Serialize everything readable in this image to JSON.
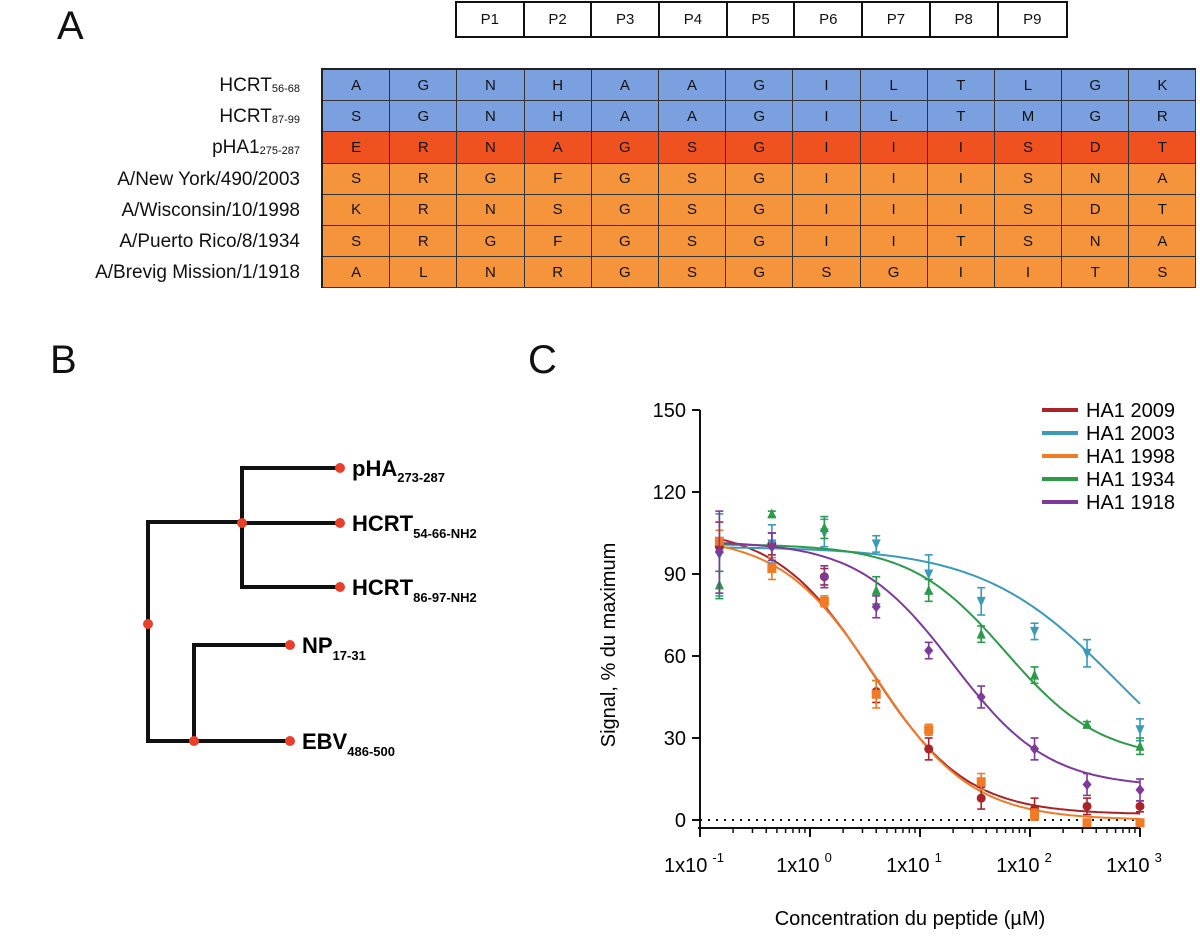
{
  "panels": {
    "a": "A",
    "b": "B",
    "c": "C"
  },
  "colors": {
    "hcrt": "#7aa0df",
    "pha1": "#f0521f",
    "strain": "#f5943a"
  },
  "positions": [
    "P1",
    "P2",
    "P3",
    "P4",
    "P5",
    "P6",
    "P7",
    "P8",
    "P9"
  ],
  "sequences": [
    {
      "name": "HCRT",
      "sub": "56-68",
      "group": "hcrt",
      "residues": [
        "A",
        "G",
        "N",
        "H",
        "A",
        "A",
        "G",
        "I",
        "L",
        "T",
        "L",
        "G",
        "K"
      ]
    },
    {
      "name": "HCRT",
      "sub": "87-99",
      "group": "hcrt",
      "residues": [
        "S",
        "G",
        "N",
        "H",
        "A",
        "A",
        "G",
        "I",
        "L",
        "T",
        "M",
        "G",
        "R"
      ]
    },
    {
      "name": "pHA1",
      "sub": "275-287",
      "group": "pha1",
      "residues": [
        "E",
        "R",
        "N",
        "A",
        "G",
        "S",
        "G",
        "I",
        "I",
        "I",
        "S",
        "D",
        "T"
      ]
    },
    {
      "name": "A/New York/490/2003",
      "sub": "",
      "group": "strain",
      "residues": [
        "S",
        "R",
        "G",
        "F",
        "G",
        "S",
        "G",
        "I",
        "I",
        "I",
        "S",
        "N",
        "A"
      ]
    },
    {
      "name": "A/Wisconsin/10/1998",
      "sub": "",
      "group": "strain",
      "residues": [
        "K",
        "R",
        "N",
        "S",
        "G",
        "S",
        "G",
        "I",
        "I",
        "I",
        "S",
        "D",
        "T"
      ]
    },
    {
      "name": "A/Puerto Rico/8/1934",
      "sub": "",
      "group": "strain",
      "residues": [
        "S",
        "R",
        "G",
        "F",
        "G",
        "S",
        "G",
        "I",
        "I",
        "T",
        "S",
        "N",
        "A"
      ]
    },
    {
      "name": "A/Brevig Mission/1/1918",
      "sub": "",
      "group": "strain",
      "residues": [
        "A",
        "L",
        "N",
        "R",
        "G",
        "S",
        "G",
        "S",
        "G",
        "I",
        "I",
        "T",
        "S"
      ]
    }
  ],
  "tree": {
    "leaves": [
      {
        "name": "pHA",
        "sub": "273-287"
      },
      {
        "name": "HCRT",
        "sub": "54-66-NH2"
      },
      {
        "name": "HCRT",
        "sub": "86-97-NH2"
      },
      {
        "name": "NP",
        "sub": "17-31"
      },
      {
        "name": "EBV",
        "sub": "486-500"
      }
    ]
  },
  "chart_data": {
    "type": "line",
    "ylabel": "Signal, % du maximum",
    "xlabel": "Concentration du peptide (µM)",
    "xscale": "log",
    "xlim": [
      0.1,
      1000
    ],
    "ylim": [
      0,
      150
    ],
    "yticks": [
      0,
      30,
      60,
      90,
      120,
      150
    ],
    "xticks": [
      {
        "base": "1x10",
        "exp": "-1",
        "value": 0.1
      },
      {
        "base": "1x10",
        "exp": "0",
        "value": 1
      },
      {
        "base": "1x10",
        "exp": "1",
        "value": 10
      },
      {
        "base": "1x10",
        "exp": "2",
        "value": 100
      },
      {
        "base": "1x10",
        "exp": "3",
        "value": 1000
      }
    ],
    "reference_line": 0,
    "legend_position": "top-right",
    "x": [
      0.15,
      0.45,
      1.35,
      4.0,
      12.0,
      36.0,
      110.0,
      330.0,
      1000.0
    ],
    "series": [
      {
        "name": "HA1 2009",
        "color": "#a82428",
        "marker": "circle",
        "values": [
          100,
          101,
          89,
          47,
          26,
          8,
          4,
          5,
          5
        ],
        "errors": [
          9,
          4,
          3,
          4,
          4,
          4,
          4,
          3,
          2
        ],
        "fit": {
          "top": 107,
          "bottom": 2,
          "ic50": 3.6,
          "hill": 1.0
        }
      },
      {
        "name": "HA1 2003",
        "color": "#3a9ab8",
        "marker": "triangle-down",
        "values": [
          97,
          101,
          105,
          101,
          90,
          80,
          69,
          61,
          33
        ],
        "errors": [
          15,
          7,
          5,
          3,
          7,
          5,
          3,
          5,
          4
        ],
        "fit": {
          "top": 100,
          "bottom": 0,
          "ic50": 650,
          "hill": 0.7
        }
      },
      {
        "name": "HA1 1998",
        "color": "#f07a25",
        "marker": "square",
        "values": [
          102,
          92,
          80,
          46,
          33,
          14,
          2,
          -1,
          -1
        ],
        "errors": [
          4,
          4,
          2,
          5,
          2,
          3,
          2,
          1,
          1
        ],
        "fit": {
          "top": 104,
          "bottom": 0,
          "ic50": 4.0,
          "hill": 1.0
        }
      },
      {
        "name": "HA1 1934",
        "color": "#2d9a4a",
        "marker": "triangle-up",
        "values": [
          86,
          112,
          107,
          84,
          84,
          68,
          53,
          35,
          27
        ],
        "errors": [
          5,
          1,
          4,
          5,
          4,
          3,
          3,
          1,
          3
        ],
        "fit": {
          "top": 101,
          "bottom": 22,
          "ic50": 60,
          "hill": 1.0
        }
      },
      {
        "name": "HA1 1918",
        "color": "#7d3a9b",
        "marker": "diamond",
        "values": [
          98,
          100,
          89,
          78,
          62,
          45,
          26,
          13,
          11
        ],
        "errors": [
          15,
          5,
          4,
          4,
          3,
          4,
          4,
          4,
          4
        ],
        "fit": {
          "top": 102,
          "bottom": 12,
          "ic50": 20,
          "hill": 1.0
        }
      }
    ]
  }
}
